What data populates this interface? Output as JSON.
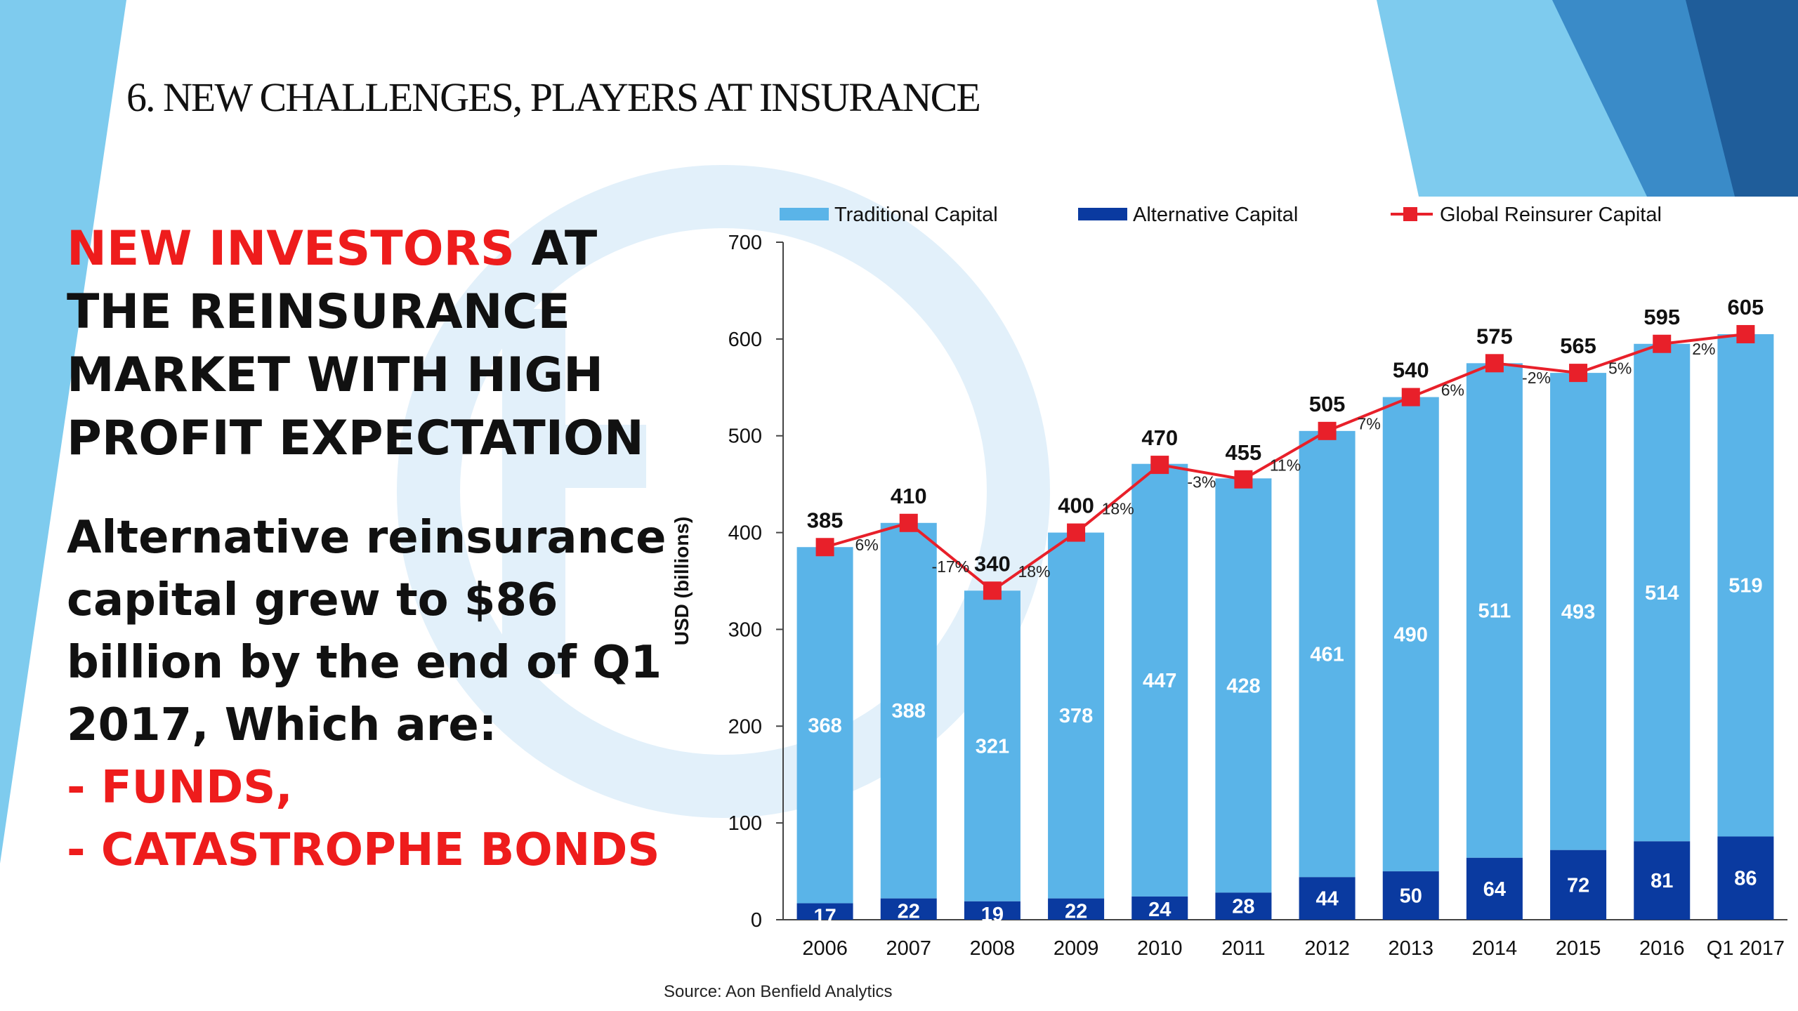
{
  "slide": {
    "title": "6. NEW CHALLENGES, PLAYERS AT INSURANCE",
    "headline_red": "NEW INVESTORS",
    "headline_rest": " AT THE REINSURANCE MARKET WITH HIGH PROFIT EXPECTATION",
    "body": "Alternative reinsurance capital grew to $86 billion by the end of Q1 2017, Which are:",
    "bullets": [
      "- FUNDS,",
      "- CATASTROPHE BONDS"
    ],
    "colors": {
      "red": "#ee1c1c",
      "light_blue": "#5ab4e8",
      "dark_blue": "#0a3aa0",
      "deco_blue": "#7ecbee"
    }
  },
  "chart_data": {
    "type": "bar",
    "stacked": true,
    "categories": [
      "2006",
      "2007",
      "2008",
      "2009",
      "2010",
      "2011",
      "2012",
      "2013",
      "2014",
      "2015",
      "2016",
      "Q1 2017"
    ],
    "series": [
      {
        "name": "Alternative Capital",
        "values": [
          17,
          22,
          19,
          22,
          24,
          28,
          44,
          50,
          64,
          72,
          81,
          86
        ],
        "color": "#0a3aa0"
      },
      {
        "name": "Traditional Capital",
        "values": [
          368,
          388,
          321,
          378,
          447,
          428,
          461,
          490,
          511,
          493,
          514,
          519
        ],
        "color": "#5ab4e8"
      }
    ],
    "line_series": {
      "name": "Global Reinsurer Capital",
      "values": [
        385,
        410,
        340,
        400,
        470,
        455,
        505,
        540,
        575,
        565,
        595,
        605
      ],
      "color": "#e8202a",
      "changes": [
        "6%",
        "-17%",
        "18%",
        "18%",
        "-3%",
        "11%",
        "7%",
        "6%",
        "-2%",
        "5%",
        "2%"
      ]
    },
    "legend_order": [
      "Traditional Capital",
      "Alternative Capital",
      "Global Reinsurer Capital"
    ],
    "legend_position": "top",
    "ylabel": "USD (billions)",
    "xlabel": "",
    "ylim": [
      0,
      700
    ],
    "yticks": [
      "0",
      "100",
      "200",
      "300",
      "400",
      "500",
      "600",
      "700"
    ],
    "grid": false,
    "source": "Source: Aon Benfield Analytics"
  }
}
